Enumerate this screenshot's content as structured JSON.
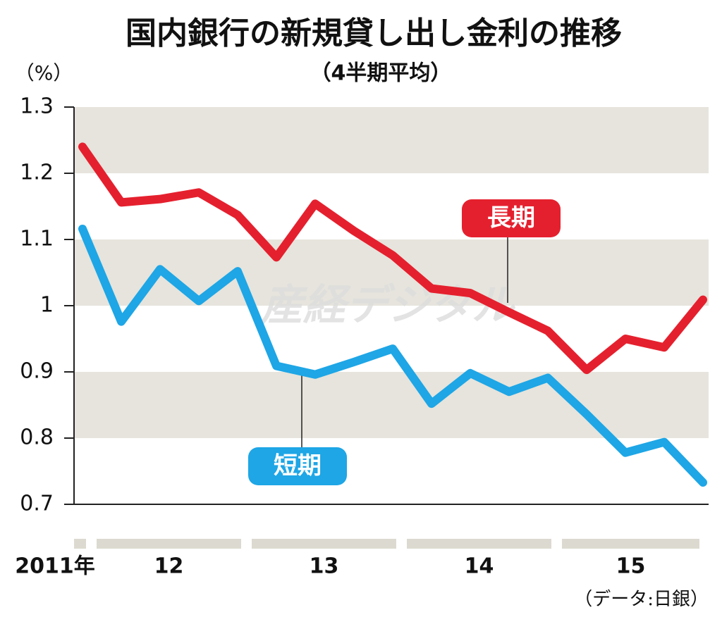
{
  "chart_data": {
    "type": "line",
    "title": "国内銀行の新規貸し出し金利の推移",
    "subtitle": "（4半期平均）",
    "y_label": "（%）",
    "source": "（データ:日銀）",
    "watermark": "産経デジタル",
    "categories": [
      "2011年",
      "12",
      null,
      null,
      null,
      "13",
      null,
      null,
      null,
      "14",
      null,
      null,
      null,
      "15",
      null,
      null,
      null
    ],
    "series": [
      {
        "name": "長期",
        "color": "#e5202e",
        "values": [
          1.24,
          1.156,
          1.161,
          1.171,
          1.137,
          1.073,
          1.154,
          1.113,
          1.076,
          1.026,
          1.019,
          0.99,
          0.962,
          0.903,
          0.95,
          0.937,
          1.009
        ]
      },
      {
        "name": "短期",
        "color": "#1ea6e6",
        "values": [
          1.116,
          0.976,
          1.055,
          1.007,
          1.052,
          0.909,
          0.896,
          0.915,
          0.935,
          0.852,
          0.898,
          0.87,
          0.891,
          0.836,
          0.778,
          0.794,
          0.733
        ]
      }
    ],
    "ylim": [
      0.7,
      1.3
    ],
    "yticks": [
      0.7,
      0.8,
      0.9,
      1,
      1.1,
      1.2,
      1.3
    ],
    "banded_grid": true
  }
}
